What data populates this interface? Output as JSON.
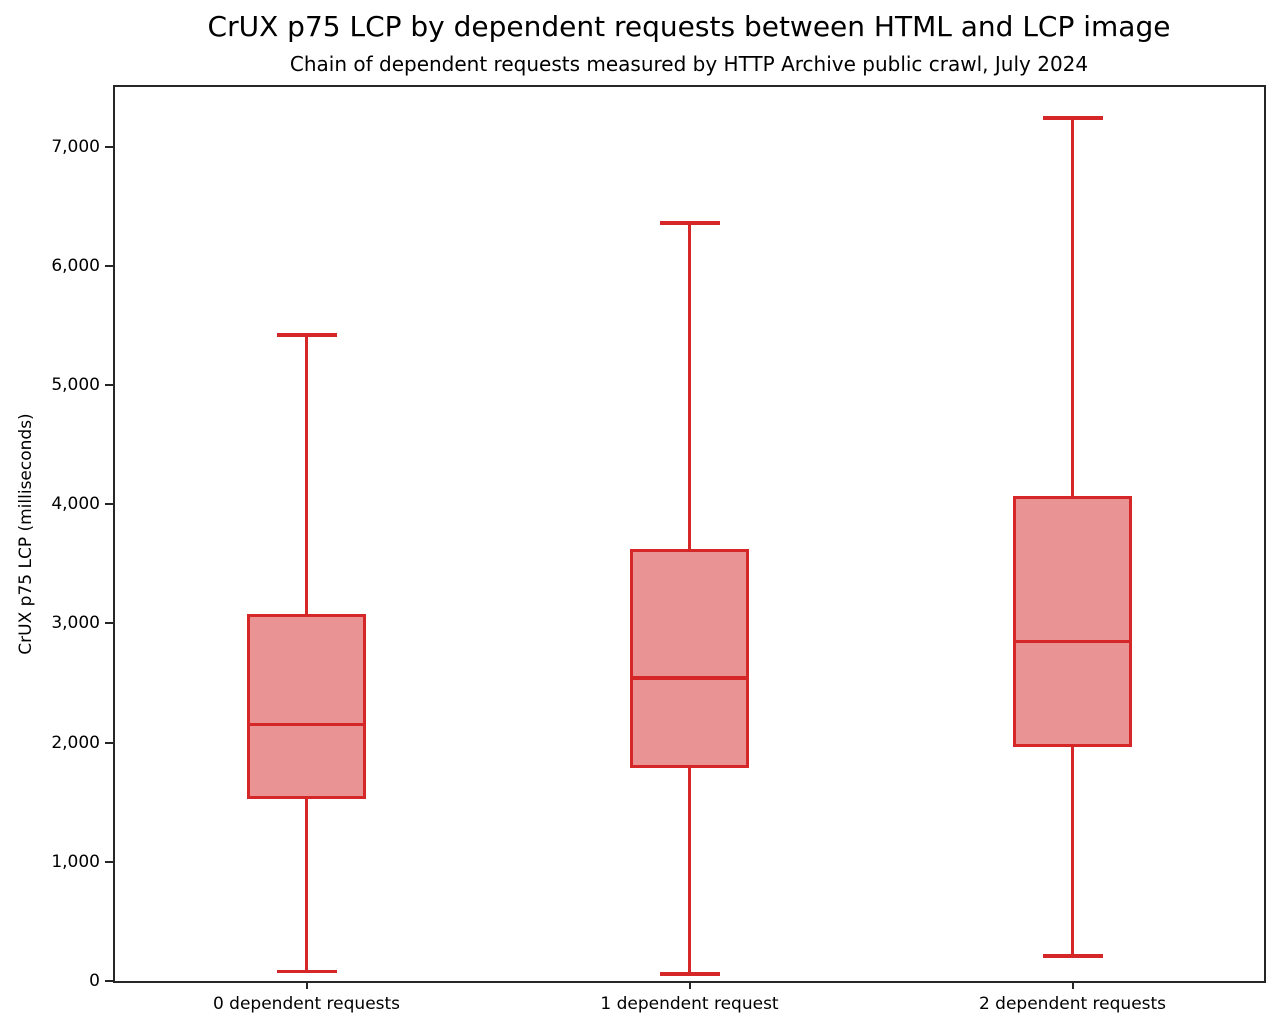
{
  "chart_data": {
    "type": "boxplot",
    "title": "CrUX p75 LCP by dependent requests between HTML and LCP image",
    "subtitle": "Chain of dependent requests measured by HTTP Archive public crawl, July 2024",
    "ylabel": "CrUX p75 LCP (milliseconds)",
    "xlabel": "",
    "ylim": [
      0,
      7500
    ],
    "y_ticks": [
      0,
      1000,
      2000,
      3000,
      4000,
      5000,
      6000,
      7000
    ],
    "y_tick_labels": [
      "0",
      "1,000",
      "2,000",
      "3,000",
      "4,000",
      "5,000",
      "6,000",
      "7,000"
    ],
    "categories": [
      "0 dependent requests",
      "1 dependent request",
      "2 dependent requests"
    ],
    "series": [
      {
        "category": "0 dependent requests",
        "whisker_low": 80,
        "q1": 1530,
        "median": 2150,
        "q3": 3080,
        "whisker_high": 5420
      },
      {
        "category": "1 dependent request",
        "whisker_low": 60,
        "q1": 1790,
        "median": 2540,
        "q3": 3620,
        "whisker_high": 6360
      },
      {
        "category": "2 dependent requests",
        "whisker_low": 210,
        "q1": 1960,
        "median": 2850,
        "q3": 4070,
        "whisker_high": 7240
      }
    ],
    "grid": false,
    "legend": null,
    "colors": {
      "box_edge": "#d62728",
      "box_fill": "#ea9394",
      "axis": "#262626",
      "text": "#000000"
    }
  }
}
